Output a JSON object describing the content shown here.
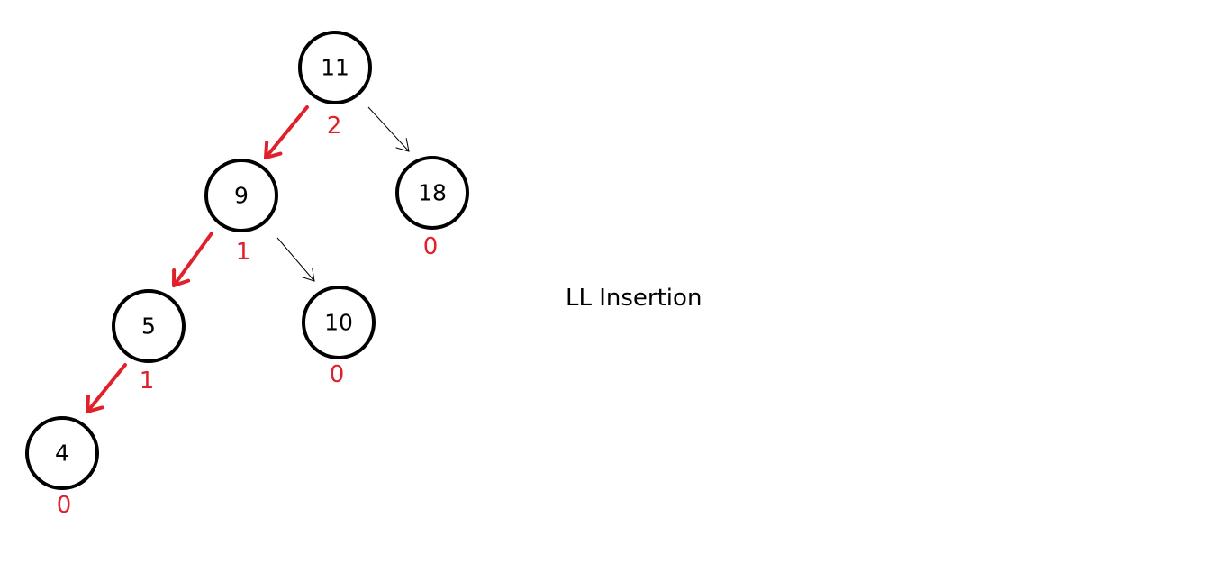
{
  "caption": "LL Insertion",
  "colors": {
    "node_stroke": "#000000",
    "text": "#000000",
    "highlight": "#e0202a"
  },
  "nodes": [
    {
      "id": "n11",
      "value": "11",
      "balance_factor": "2"
    },
    {
      "id": "n9",
      "value": "9",
      "balance_factor": "1"
    },
    {
      "id": "n18",
      "value": "18",
      "balance_factor": "0"
    },
    {
      "id": "n5",
      "value": "5",
      "balance_factor": "1"
    },
    {
      "id": "n10",
      "value": "10",
      "balance_factor": "0"
    },
    {
      "id": "n4",
      "value": "4",
      "balance_factor": "0"
    }
  ],
  "edges": [
    {
      "from": "n11",
      "to": "n9",
      "highlighted": true
    },
    {
      "from": "n11",
      "to": "n18",
      "highlighted": false
    },
    {
      "from": "n9",
      "to": "n5",
      "highlighted": true
    },
    {
      "from": "n9",
      "to": "n10",
      "highlighted": false
    },
    {
      "from": "n5",
      "to": "n4",
      "highlighted": true
    }
  ]
}
